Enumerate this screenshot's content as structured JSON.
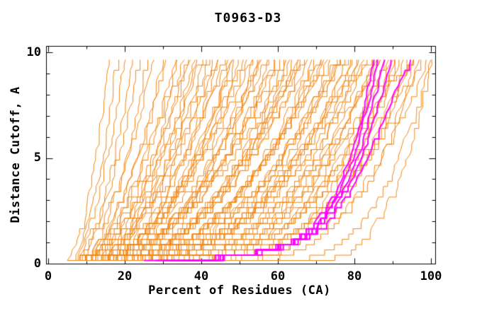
{
  "chart_data": {
    "type": "line",
    "title": "T0963-D3",
    "xlabel": "Percent of Residues (CA)",
    "ylabel": "Distance Cutoff, A",
    "xlim": [
      0,
      100
    ],
    "ylim": [
      0,
      10
    ],
    "x_ticks": [
      0,
      20,
      40,
      60,
      80,
      100
    ],
    "y_ticks": [
      0,
      5,
      10
    ],
    "x_minor_step": 10,
    "y_minor_step": 1,
    "grid": false,
    "legend": "none",
    "frame": "full-box-inward-ticks",
    "curve_y_start": 0.15,
    "curve_y_end": 9.7,
    "colors": {
      "orange_curves": "#f28613",
      "magenta_curves": "#ff00ff",
      "axis": "#000000",
      "background": "#ffffff",
      "text": "#000000"
    },
    "orange_curves_note": "each curve = [x_at_bottom(y~0.15), x_at_top(y~9.7), shape_exponent] of x(y)=xb+(xt-xb)*u^p staircase",
    "orange_curves": [
      [
        5,
        16,
        0.6
      ],
      [
        5,
        18,
        0.55
      ],
      [
        6,
        20,
        0.62
      ],
      [
        5,
        22,
        0.5
      ],
      [
        6,
        24,
        0.58
      ],
      [
        7,
        26,
        0.52
      ],
      [
        6,
        28,
        0.6
      ],
      [
        5,
        30,
        0.48
      ],
      [
        7,
        31,
        0.56
      ],
      [
        6,
        33,
        0.5
      ],
      [
        8,
        34,
        0.6
      ],
      [
        7,
        36,
        0.45
      ],
      [
        6,
        37,
        0.55
      ],
      [
        9,
        38,
        0.5
      ],
      [
        7,
        40,
        0.58
      ],
      [
        8,
        41,
        0.46
      ],
      [
        6,
        42,
        0.52
      ],
      [
        9,
        44,
        0.56
      ],
      [
        7,
        45,
        0.44
      ],
      [
        10,
        46,
        0.5
      ],
      [
        8,
        47,
        0.55
      ],
      [
        7,
        48,
        0.42
      ],
      [
        11,
        49,
        0.52
      ],
      [
        8,
        50,
        0.47
      ],
      [
        9,
        52,
        0.5
      ],
      [
        12,
        53,
        0.55
      ],
      [
        8,
        54,
        0.4
      ],
      [
        10,
        55,
        0.5
      ],
      [
        9,
        56,
        0.45
      ],
      [
        13,
        57,
        0.52
      ],
      [
        10,
        58,
        0.42
      ],
      [
        11,
        60,
        0.48
      ],
      [
        9,
        61,
        0.5
      ],
      [
        14,
        62,
        0.44
      ],
      [
        10,
        63,
        0.5
      ],
      [
        12,
        64,
        0.4
      ],
      [
        11,
        65,
        0.46
      ],
      [
        15,
        66,
        0.5
      ],
      [
        10,
        67,
        0.42
      ],
      [
        13,
        68,
        0.47
      ],
      [
        12,
        70,
        0.38
      ],
      [
        16,
        71,
        0.45
      ],
      [
        11,
        72,
        0.42
      ],
      [
        14,
        73,
        0.46
      ],
      [
        13,
        74,
        0.36
      ],
      [
        18,
        75,
        0.44
      ],
      [
        12,
        76,
        0.4
      ],
      [
        15,
        77,
        0.45
      ],
      [
        14,
        78,
        0.35
      ],
      [
        20,
        79,
        0.42
      ],
      [
        13,
        80,
        0.38
      ],
      [
        16,
        81,
        0.44
      ],
      [
        22,
        82,
        0.36
      ],
      [
        15,
        83,
        0.4
      ],
      [
        18,
        84,
        0.42
      ],
      [
        25,
        85,
        0.34
      ],
      [
        16,
        86,
        0.38
      ],
      [
        20,
        87,
        0.4
      ],
      [
        28,
        88,
        0.33
      ],
      [
        17,
        89,
        0.36
      ],
      [
        22,
        90,
        0.38
      ],
      [
        32,
        91,
        0.32
      ],
      [
        19,
        92,
        0.35
      ],
      [
        25,
        93,
        0.36
      ],
      [
        36,
        94,
        0.3
      ],
      [
        21,
        95,
        0.34
      ],
      [
        28,
        96,
        0.32
      ],
      [
        42,
        97,
        0.3
      ],
      [
        24,
        98,
        0.33
      ],
      [
        33,
        99,
        0.3
      ],
      [
        50,
        100,
        0.28
      ],
      [
        60,
        100,
        0.26
      ],
      [
        8,
        35,
        0.5
      ],
      [
        10,
        39,
        0.48
      ],
      [
        9,
        43,
        0.52
      ],
      [
        11,
        48,
        0.45
      ],
      [
        10,
        51,
        0.5
      ],
      [
        12,
        55,
        0.44
      ],
      [
        11,
        59,
        0.48
      ],
      [
        13,
        63,
        0.42
      ],
      [
        12,
        66,
        0.46
      ],
      [
        14,
        69,
        0.4
      ],
      [
        13,
        72,
        0.44
      ],
      [
        15,
        76,
        0.38
      ],
      [
        17,
        81,
        0.4
      ],
      [
        19,
        86,
        0.36
      ],
      [
        23,
        91,
        0.34
      ],
      [
        27,
        95,
        0.32
      ]
    ],
    "magenta_curves_note": "each curve = list of [x,y] anchor points read off the plot",
    "magenta_curves": [
      [
        [
          25,
          0.15
        ],
        [
          40,
          0.3
        ],
        [
          52,
          0.55
        ],
        [
          62,
          1.0
        ],
        [
          69,
          1.8
        ],
        [
          74,
          3.0
        ],
        [
          78,
          4.6
        ],
        [
          81,
          6.2
        ],
        [
          83,
          7.6
        ],
        [
          84,
          8.6
        ],
        [
          85,
          9.7
        ]
      ],
      [
        [
          28,
          0.15
        ],
        [
          44,
          0.35
        ],
        [
          56,
          0.65
        ],
        [
          65,
          1.2
        ],
        [
          71,
          2.1
        ],
        [
          76,
          3.4
        ],
        [
          80,
          5.0
        ],
        [
          82,
          6.6
        ],
        [
          84,
          7.9
        ],
        [
          85,
          8.8
        ],
        [
          86,
          9.7
        ]
      ],
      [
        [
          30,
          0.2
        ],
        [
          46,
          0.4
        ],
        [
          58,
          0.75
        ],
        [
          67,
          1.35
        ],
        [
          73,
          2.4
        ],
        [
          78,
          3.8
        ],
        [
          82,
          5.5
        ],
        [
          84,
          7.0
        ],
        [
          86,
          8.2
        ],
        [
          87,
          9.0
        ],
        [
          88,
          9.7
        ]
      ],
      [
        [
          32,
          0.2
        ],
        [
          48,
          0.45
        ],
        [
          60,
          0.85
        ],
        [
          69,
          1.5
        ],
        [
          75,
          2.7
        ],
        [
          80,
          4.2
        ],
        [
          84,
          6.0
        ],
        [
          86,
          7.4
        ],
        [
          88,
          8.5
        ],
        [
          89,
          9.2
        ],
        [
          90,
          9.7
        ]
      ],
      [
        [
          35,
          0.25
        ],
        [
          52,
          0.55
        ],
        [
          64,
          1.0
        ],
        [
          72,
          1.8
        ],
        [
          78,
          3.2
        ],
        [
          83,
          4.8
        ],
        [
          87,
          6.5
        ],
        [
          90,
          7.8
        ],
        [
          92,
          8.7
        ],
        [
          94,
          9.3
        ],
        [
          95,
          9.7
        ]
      ]
    ]
  }
}
